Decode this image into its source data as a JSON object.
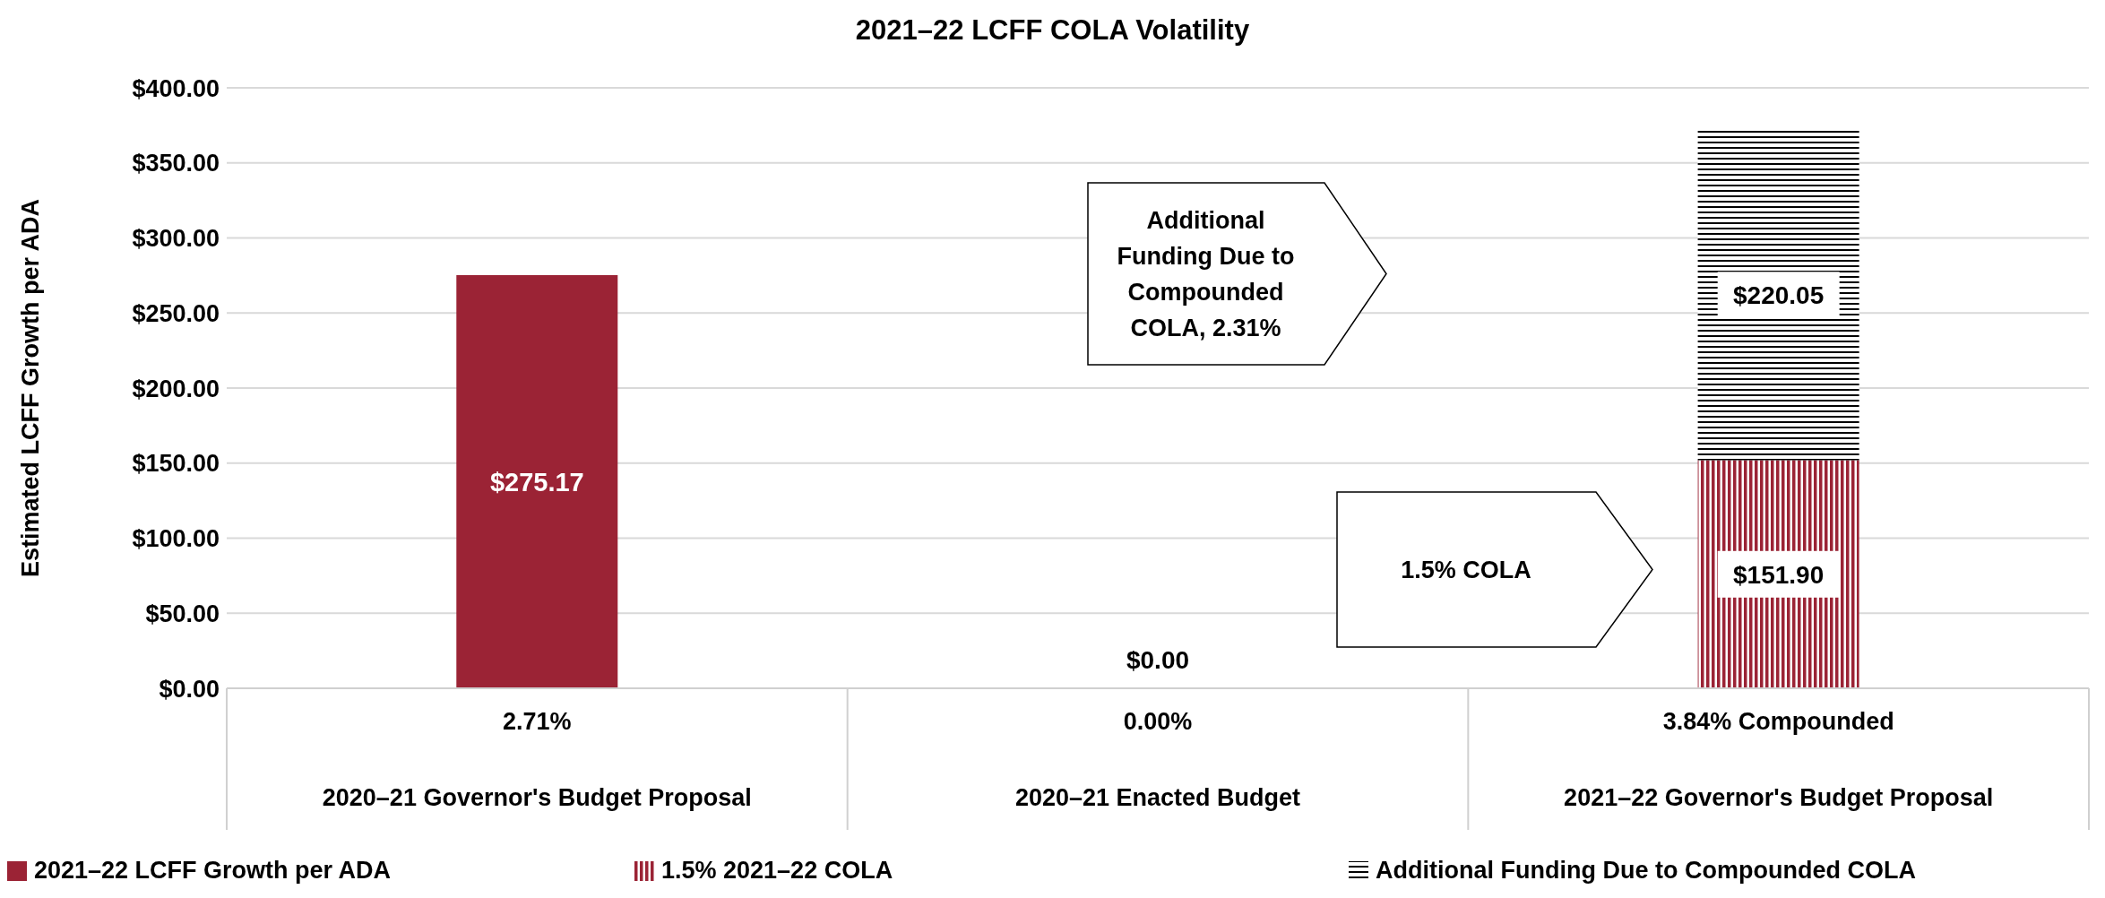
{
  "chart_data": {
    "type": "bar",
    "title": "2021–22 LCFF COLA Volatility",
    "ylabel": "Estimated LCFF Growth per ADA",
    "categories": [
      "2.71%\n2020–21 Governor's Budget Proposal",
      "0.00%\n2020–21 Enacted Budget",
      "3.84% Compounded\n2021–22 Governor's Budget Proposal"
    ],
    "stacked": true,
    "series": [
      {
        "name": "2021–22 LCFF Growth per ADA",
        "color": "#9b2335",
        "values": [
          275.17,
          0,
          null
        ],
        "value_labels": [
          "$275.17",
          "$0.00",
          null
        ]
      },
      {
        "name": "1.5% 2021–22 COLA",
        "color": "#9b2335",
        "values": [
          null,
          null,
          151.9
        ],
        "value_labels": [
          null,
          null,
          "$151.90"
        ]
      },
      {
        "name": "Additional Funding Due to Compounded COLA",
        "color": "#000000",
        "values": [
          null,
          null,
          220.05
        ],
        "value_labels": [
          null,
          null,
          "$220.05"
        ]
      }
    ],
    "ylim": [
      0,
      400
    ],
    "yticks": [
      {
        "value": 0,
        "label": "$0.00"
      },
      {
        "value": 50,
        "label": "$50.00"
      },
      {
        "value": 100,
        "label": "$100.00"
      },
      {
        "value": 150,
        "label": "$150.00"
      },
      {
        "value": 200,
        "label": "$200.00"
      },
      {
        "value": 250,
        "label": "$250.00"
      },
      {
        "value": 300,
        "label": "$300.00"
      },
      {
        "value": 350,
        "label": "$350.00"
      },
      {
        "value": 400,
        "label": "$400.00"
      }
    ],
    "grid": "y",
    "legend": "bottom",
    "annotations": [
      "Additional Funding Due to Compounded COLA, 2.31%",
      "1.5% COLA"
    ]
  }
}
